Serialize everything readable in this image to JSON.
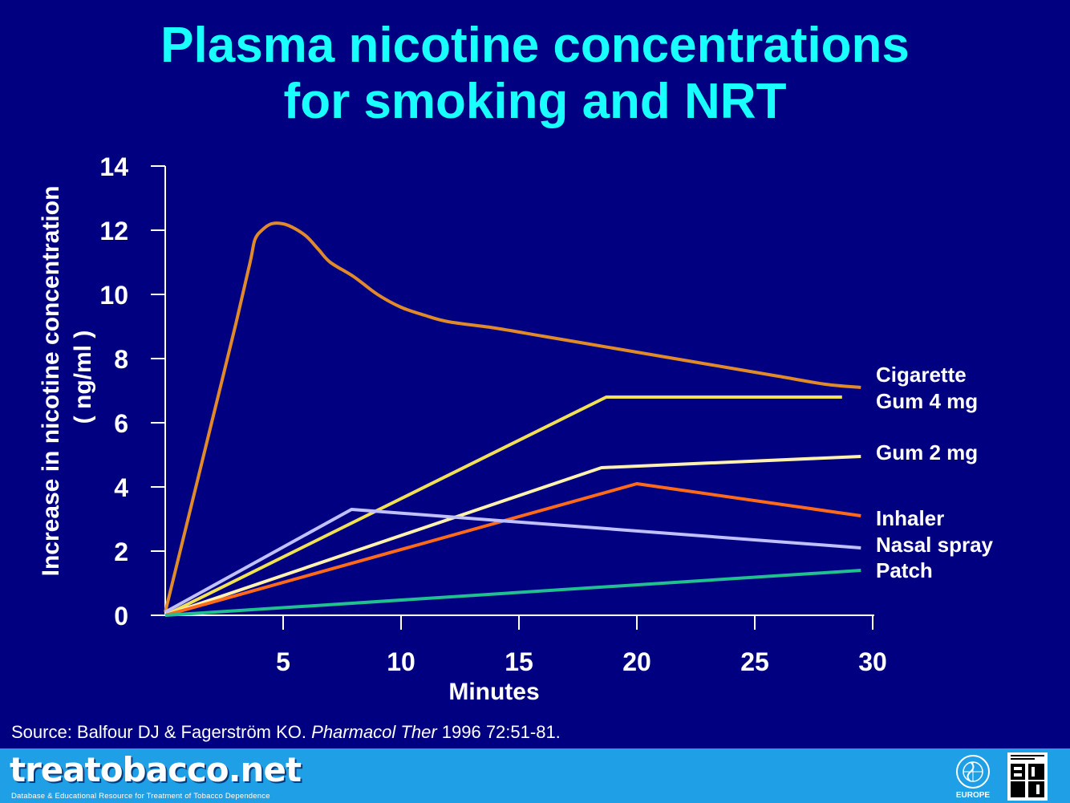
{
  "slide": {
    "title_line1": "Plasma nicotine concentrations",
    "title_line2": "for smoking and NRT",
    "source_prefix": "Source: Balfour DJ & Fagerström KO.  ",
    "source_journal": "Pharmacol Ther",
    "source_suffix": " 1996 72:51-81."
  },
  "footer": {
    "brand": "treatobacco.net",
    "tagline": "Database & Educational Resource for Treatment of Tobacco Dependence",
    "who_label": "EUROPE",
    "who_logo_icon": "who-emblem-icon",
    "srnt_logo_icon": "srnt-logo-icon"
  },
  "colors": {
    "background": "#000080",
    "title": "#19ffff",
    "footer": "#1fa0e6"
  },
  "chart_data": {
    "type": "line",
    "title": "",
    "xlabel": "Minutes",
    "ylabel_line1": "Increase in nicotine concentration",
    "ylabel_line2": "( ng/ml )",
    "xlim": [
      0,
      30
    ],
    "ylim": [
      0,
      14
    ],
    "x_ticks": [
      5,
      10,
      15,
      20,
      25,
      30
    ],
    "y_ticks": [
      0,
      2,
      4,
      6,
      8,
      10,
      12,
      14
    ],
    "grid": false,
    "legend": "labels at right end of lines",
    "series": [
      {
        "name": "Cigarette",
        "color": "#e08a2a",
        "smooth": true,
        "points": [
          [
            0,
            0.1
          ],
          [
            1,
            3.1
          ],
          [
            2,
            6.1
          ],
          [
            3,
            9.1
          ],
          [
            3.6,
            11
          ],
          [
            3.8,
            11.7
          ],
          [
            4.1,
            12.0
          ],
          [
            4.5,
            12.2
          ],
          [
            5,
            12.2
          ],
          [
            5.5,
            12.05
          ],
          [
            6,
            11.8
          ],
          [
            6.5,
            11.4
          ],
          [
            7,
            11.0
          ],
          [
            8,
            10.55
          ],
          [
            9,
            10.0
          ],
          [
            10,
            9.6
          ],
          [
            11,
            9.35
          ],
          [
            12,
            9.15
          ],
          [
            14,
            8.95
          ],
          [
            16,
            8.7
          ],
          [
            18,
            8.45
          ],
          [
            20,
            8.2
          ],
          [
            22,
            7.95
          ],
          [
            24,
            7.7
          ],
          [
            26,
            7.45
          ],
          [
            28,
            7.2
          ],
          [
            29.5,
            7.1
          ]
        ]
      },
      {
        "name": "Gum 4 mg",
        "color": "#f2e055",
        "points": [
          [
            0,
            0
          ],
          [
            18.7,
            6.8
          ],
          [
            28.7,
            6.8
          ]
        ]
      },
      {
        "name": "Gum 2 mg",
        "color": "#fff2b0",
        "points": [
          [
            0,
            0
          ],
          [
            18.5,
            4.6
          ],
          [
            29.5,
            4.95
          ]
        ]
      },
      {
        "name": "Inhaler",
        "color": "#ff6a1a",
        "points": [
          [
            0,
            0
          ],
          [
            20,
            4.1
          ],
          [
            29.5,
            3.1
          ]
        ]
      },
      {
        "name": "Nasal spray",
        "color": "#c0c0ff",
        "points": [
          [
            0,
            0.1
          ],
          [
            7.9,
            3.3
          ],
          [
            29.5,
            2.1
          ]
        ]
      },
      {
        "name": "Patch",
        "color": "#20c090",
        "points": [
          [
            0,
            0
          ],
          [
            29.5,
            1.4
          ]
        ]
      }
    ]
  }
}
